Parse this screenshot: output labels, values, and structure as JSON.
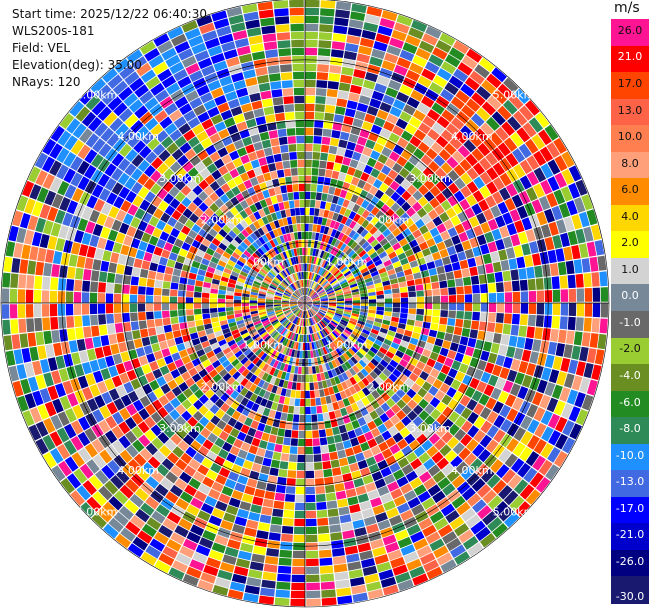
{
  "info": {
    "start_time": "Start time: 2025/12/22 06:40:30",
    "instrument": "WLS200s-181",
    "field": "Field: VEL",
    "elevation": "Elevation(deg): 35.00",
    "nrays": "NRays: 120"
  },
  "colorbar": {
    "unit": "m/s",
    "ticks": [
      "26.0",
      "21.0",
      "17.0",
      "13.0",
      "10.0",
      "8.0",
      "6.0",
      "4.0",
      "2.0",
      "1.0",
      "0.0",
      "-1.0",
      "-2.0",
      "-4.0",
      "-6.0",
      "-8.0",
      "-10.0",
      "-13.0",
      "-17.0",
      "-21.0",
      "-26.0",
      "-30.0"
    ],
    "colors": [
      "#ff1493",
      "#ff0000",
      "#ff4500",
      "#ff6347",
      "#ff7f50",
      "#ffa07a",
      "#ff8c00",
      "#ffd700",
      "#ffff00",
      "#d3d3d3",
      "#778899",
      "#696969",
      "#9acd32",
      "#6b8e23",
      "#228b22",
      "#2e8b57",
      "#1e90ff",
      "#4169e1",
      "#0000ff",
      "#0000cd",
      "#000080",
      "#191970"
    ]
  },
  "chart_data": {
    "type": "heatmap",
    "projection": "polar (PPI scan)",
    "field": "VEL",
    "units": "m/s",
    "nrays": 120,
    "range_ring_labels": [
      "1.00km",
      "2.00km",
      "3.00km",
      "4.00km",
      "5.00km"
    ],
    "color_scale": [
      -30.0,
      -26.0,
      -21.0,
      -17.0,
      -13.0,
      -10.0,
      -8.0,
      -6.0,
      -4.0,
      -2.0,
      -1.0,
      0.0,
      1.0,
      2.0,
      4.0,
      6.0,
      8.0,
      10.0,
      13.0,
      17.0,
      21.0,
      26.0
    ]
  }
}
